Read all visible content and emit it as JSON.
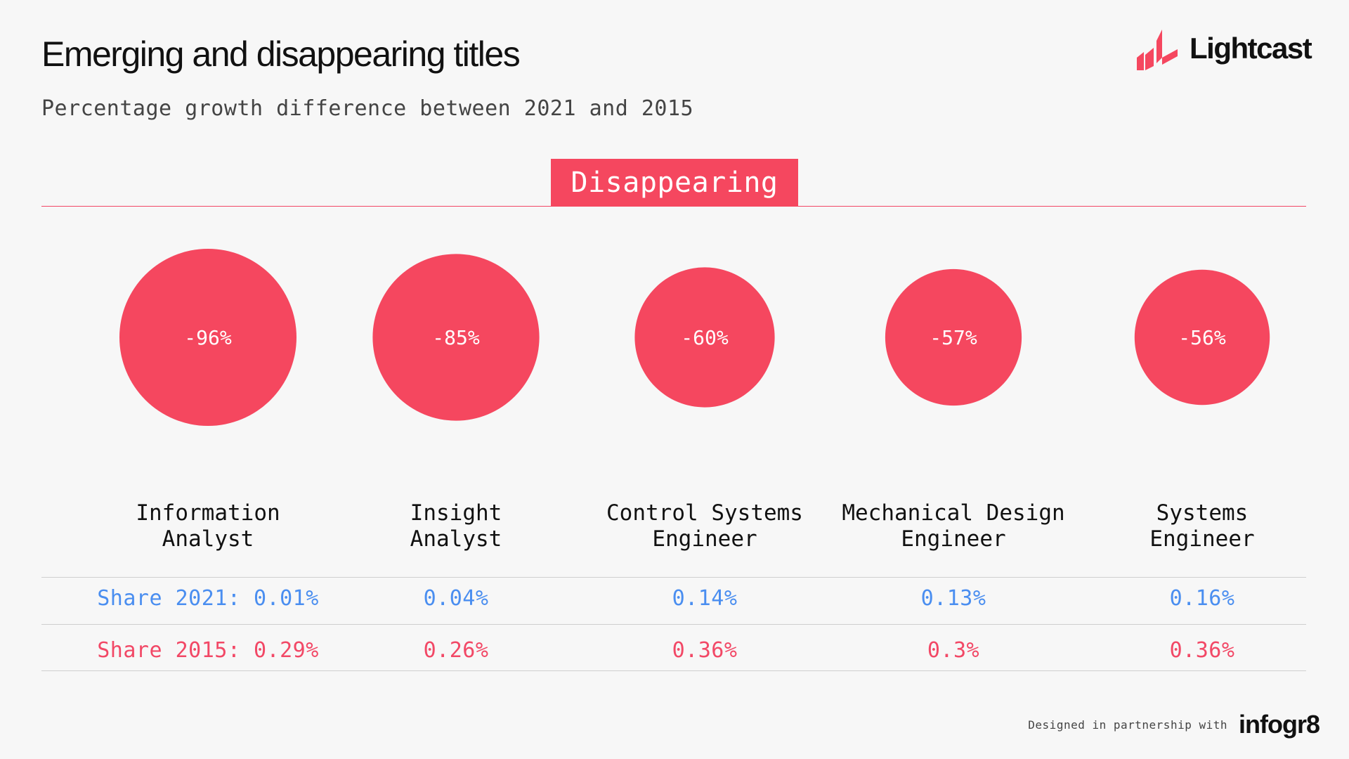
{
  "header": {
    "title": "Emerging and disappearing titles",
    "subtitle": "Percentage growth difference between 2021 and 2015"
  },
  "brand": {
    "name": "Lightcast",
    "accent_color": "#f5475f"
  },
  "section": {
    "label": "Disappearing"
  },
  "chart_data": {
    "type": "bubble",
    "title": "Emerging and disappearing titles",
    "subtitle": "Percentage growth difference between 2021 and 2015",
    "section": "Disappearing",
    "categories": [
      [
        "Information",
        "Analyst"
      ],
      [
        "Insight",
        "Analyst"
      ],
      [
        "Control Systems",
        "Engineer"
      ],
      [
        "Mechanical Design",
        "Engineer"
      ],
      [
        "Systems",
        "Engineer"
      ]
    ],
    "growth_values": [
      -96,
      -85,
      -60,
      -57,
      -56
    ],
    "growth_labels": [
      "-96%",
      "-85%",
      "-60%",
      "-57%",
      "-56%"
    ],
    "share_2021_prefix": "Share 2021: ",
    "share_2015_prefix": "Share 2015: ",
    "share_2021": [
      "0.01%",
      "0.04%",
      "0.14%",
      "0.13%",
      "0.16%"
    ],
    "share_2015": [
      "0.29%",
      "0.26%",
      "0.36%",
      "0.3%",
      "0.36%"
    ],
    "colors": {
      "bubble": "#f5475f",
      "share_2021": "#4a8ef0",
      "share_2015": "#f24866"
    }
  },
  "footer": {
    "text": "Designed in partnership with",
    "partner": "infogr8"
  }
}
